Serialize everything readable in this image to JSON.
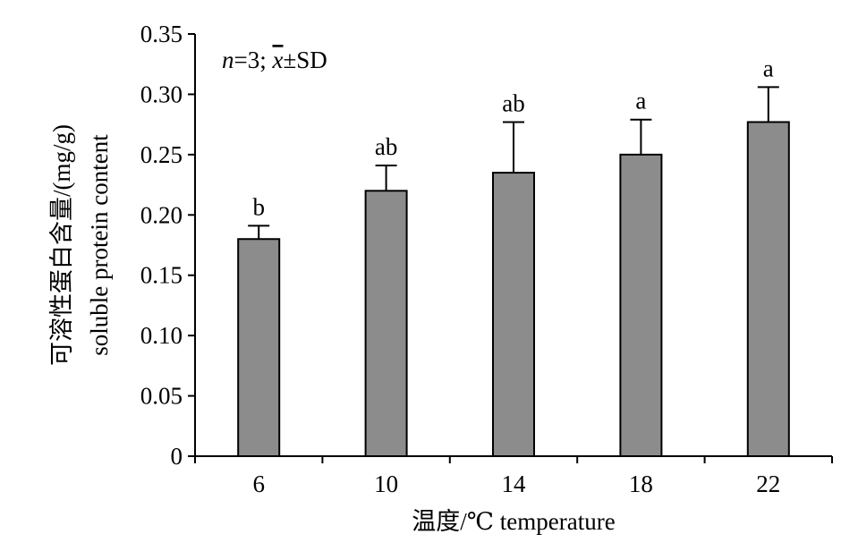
{
  "chart_data": {
    "type": "bar",
    "categories": [
      "6",
      "10",
      "14",
      "18",
      "22"
    ],
    "values": [
      0.18,
      0.22,
      0.235,
      0.25,
      0.277
    ],
    "errors": [
      0.011,
      0.021,
      0.042,
      0.029,
      0.029
    ],
    "significance": [
      "b",
      "ab",
      "ab",
      "a",
      "a"
    ],
    "xlabel": "温度/℃ temperature",
    "ylabel_cn": "可溶性蛋白含量/(mg/g)",
    "ylabel_en": "soluble protein content",
    "ylim": [
      0,
      0.35
    ],
    "yticks": [
      "0",
      "0.05",
      "0.10",
      "0.15",
      "0.20",
      "0.25",
      "0.30",
      "0.35"
    ],
    "yticks_values": [
      0,
      0.05,
      0.1,
      0.15,
      0.2,
      0.25,
      0.3,
      0.35
    ],
    "annotation": {
      "n_italic": "n",
      "n_rest": "=3; ",
      "mean_symbol": "x",
      "rest": "±SD"
    },
    "grid": false,
    "bar_color": "#8c8c8c"
  }
}
